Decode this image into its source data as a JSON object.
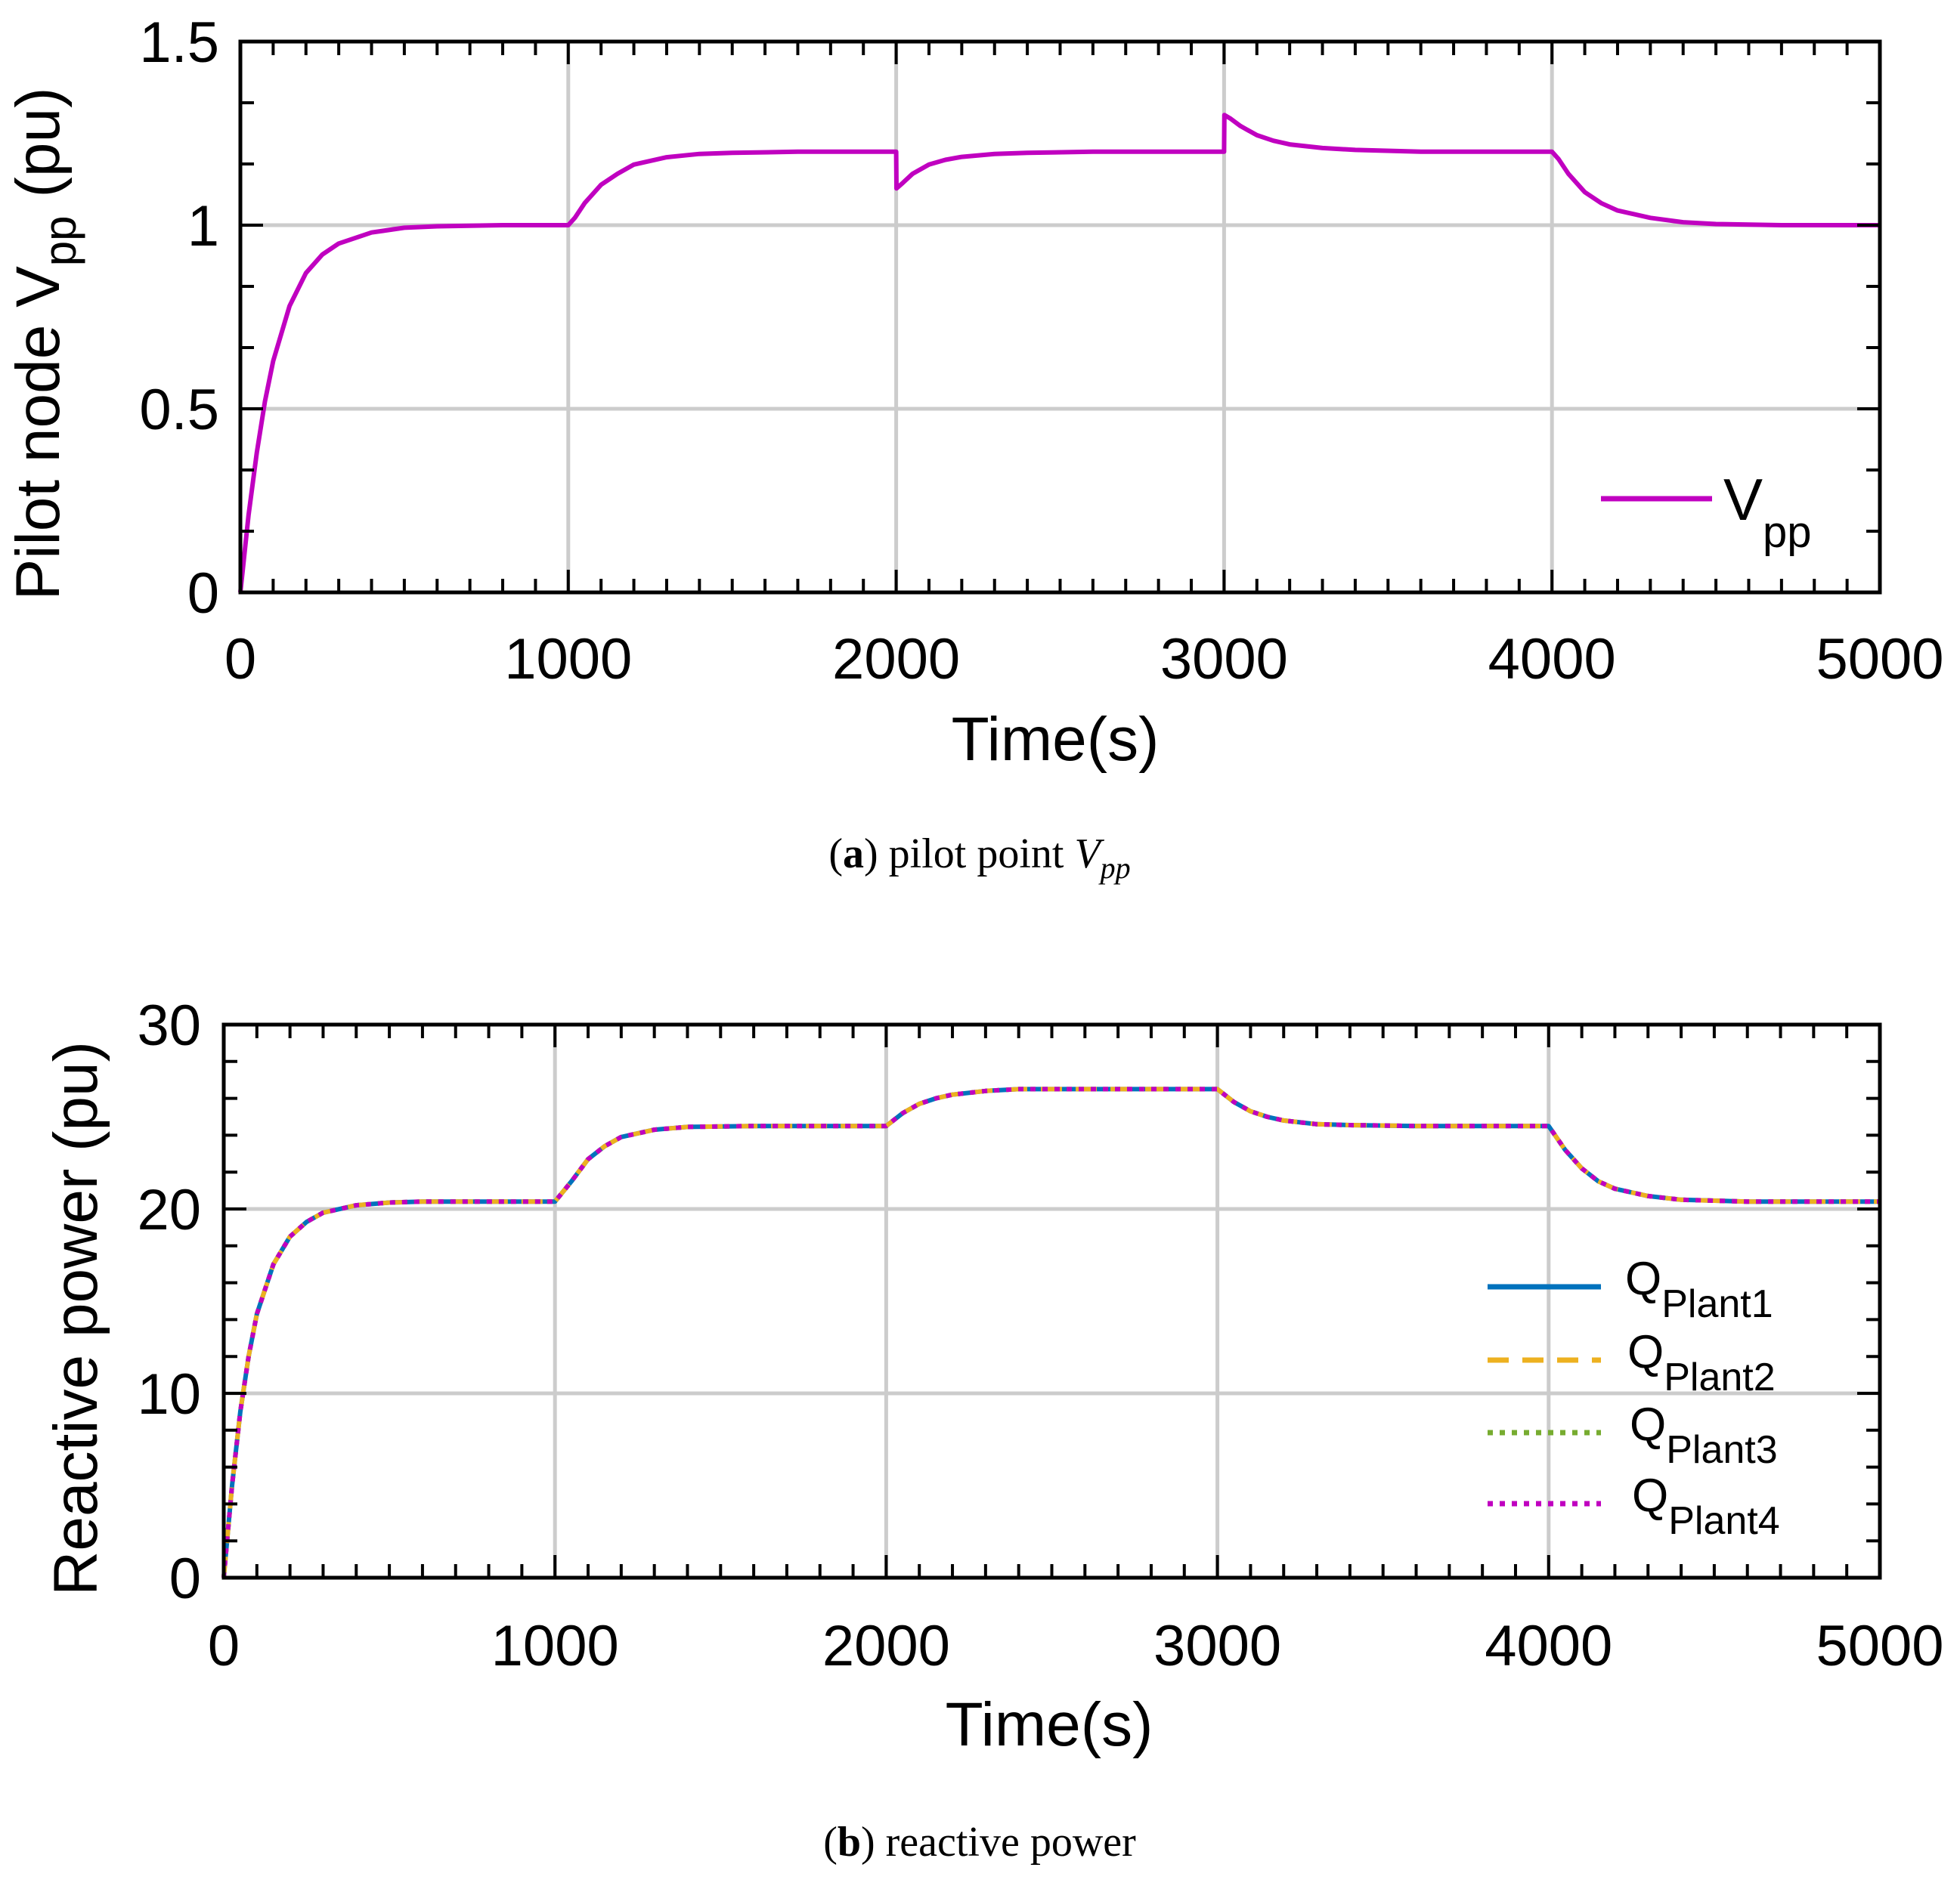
{
  "colors": {
    "vpp": "#c000c0",
    "plant1": "#0072bd",
    "plant2": "#edb120",
    "plant3": "#77ac30",
    "plant4": "#c000c0",
    "grid": "#cccccc",
    "axis": "#000000"
  },
  "chart_data": [
    {
      "type": "line",
      "id": "a",
      "xlabel": "Time(s)",
      "ylabel": "Pilot node V",
      "ylabel_sub": "pp",
      "ylabel_unit": "(pu)",
      "xlim": [
        0,
        5000
      ],
      "ylim": [
        0,
        1.5
      ],
      "xticks": [
        0,
        1000,
        2000,
        3000,
        4000,
        5000
      ],
      "xtick_labels": [
        "0",
        "1000",
        "2000",
        "3000",
        "4000",
        "5000"
      ],
      "yticks": [
        0,
        0.5,
        1,
        1.5
      ],
      "ytick_labels": [
        "0",
        "0.5",
        "1",
        "1.5"
      ],
      "grid": true,
      "legend_position": "bottom-right",
      "series": [
        {
          "name": "V",
          "name_sub": "pp",
          "style": "solid",
          "x": [
            0,
            25,
            50,
            75,
            100,
            150,
            200,
            250,
            300,
            400,
            500,
            600,
            800,
            1000,
            1020,
            1050,
            1100,
            1150,
            1200,
            1300,
            1400,
            1500,
            1700,
            2000,
            2001,
            2020,
            2050,
            2100,
            2150,
            2200,
            2300,
            2400,
            2600,
            3000,
            3001,
            3020,
            3050,
            3100,
            3150,
            3200,
            3300,
            3400,
            3600,
            4000,
            4020,
            4050,
            4100,
            4150,
            4200,
            4300,
            4400,
            4500,
            4700,
            5000
          ],
          "y": [
            0,
            0.21,
            0.38,
            0.52,
            0.63,
            0.78,
            0.87,
            0.92,
            0.95,
            0.98,
            0.993,
            0.997,
            1.0,
            1.0,
            1.02,
            1.06,
            1.11,
            1.14,
            1.165,
            1.185,
            1.194,
            1.197,
            1.2,
            1.2,
            1.1,
            1.115,
            1.14,
            1.165,
            1.178,
            1.186,
            1.194,
            1.197,
            1.2,
            1.2,
            1.3,
            1.29,
            1.27,
            1.245,
            1.23,
            1.22,
            1.21,
            1.205,
            1.2,
            1.2,
            1.18,
            1.14,
            1.09,
            1.06,
            1.04,
            1.02,
            1.008,
            1.003,
            1.0,
            1.0
          ]
        }
      ],
      "caption": {
        "label": "a",
        "text": "pilot point",
        "symbol": "V",
        "symbol_sub": "pp"
      }
    },
    {
      "type": "line",
      "id": "b",
      "xlabel": "Time(s)",
      "ylabel": "Reactive power (pu)",
      "xlim": [
        0,
        5000
      ],
      "ylim": [
        0,
        30
      ],
      "xticks": [
        0,
        1000,
        2000,
        3000,
        4000,
        5000
      ],
      "xtick_labels": [
        "0",
        "1000",
        "2000",
        "3000",
        "4000",
        "5000"
      ],
      "yticks": [
        0,
        10,
        20,
        30
      ],
      "ytick_labels": [
        "0",
        "10",
        "20",
        "30"
      ],
      "grid": true,
      "legend_position": "right",
      "x": [
        0,
        25,
        50,
        75,
        100,
        150,
        200,
        250,
        300,
        400,
        500,
        600,
        800,
        1000,
        1050,
        1100,
        1150,
        1200,
        1300,
        1400,
        1600,
        2000,
        2050,
        2100,
        2150,
        2200,
        2300,
        2400,
        2600,
        3000,
        3050,
        3100,
        3150,
        3200,
        3300,
        3400,
        3600,
        4000,
        4050,
        4100,
        4150,
        4200,
        4300,
        4400,
        4600,
        5000
      ],
      "series": [
        {
          "name": "Q",
          "name_sub": "Plant1",
          "style": "solid",
          "values": [
            0,
            5.0,
            9.0,
            12.0,
            14.3,
            17.0,
            18.5,
            19.3,
            19.8,
            20.2,
            20.35,
            20.4,
            20.4,
            20.4,
            21.5,
            22.7,
            23.4,
            23.9,
            24.3,
            24.45,
            24.5,
            24.5,
            25.2,
            25.7,
            26.0,
            26.2,
            26.4,
            26.5,
            26.5,
            26.5,
            25.8,
            25.3,
            25.0,
            24.8,
            24.6,
            24.55,
            24.5,
            24.5,
            23.2,
            22.2,
            21.5,
            21.1,
            20.7,
            20.5,
            20.4,
            20.4
          ]
        },
        {
          "name": "Q",
          "name_sub": "Plant2",
          "style": "dashed",
          "values": [
            0,
            5.0,
            9.0,
            12.0,
            14.3,
            17.0,
            18.5,
            19.3,
            19.8,
            20.2,
            20.35,
            20.4,
            20.4,
            20.4,
            21.5,
            22.7,
            23.4,
            23.9,
            24.3,
            24.45,
            24.5,
            24.5,
            25.2,
            25.7,
            26.0,
            26.2,
            26.4,
            26.5,
            26.5,
            26.5,
            25.8,
            25.3,
            25.0,
            24.8,
            24.6,
            24.55,
            24.5,
            24.5,
            23.2,
            22.2,
            21.5,
            21.1,
            20.7,
            20.5,
            20.4,
            20.4
          ]
        },
        {
          "name": "Q",
          "name_sub": "Plant3",
          "style": "dotted",
          "values": [
            0,
            5.0,
            9.0,
            12.0,
            14.3,
            17.0,
            18.5,
            19.3,
            19.8,
            20.2,
            20.35,
            20.4,
            20.4,
            20.4,
            21.5,
            22.7,
            23.4,
            23.9,
            24.3,
            24.45,
            24.5,
            24.5,
            25.2,
            25.7,
            26.0,
            26.2,
            26.4,
            26.5,
            26.5,
            26.5,
            25.8,
            25.3,
            25.0,
            24.8,
            24.6,
            24.55,
            24.5,
            24.5,
            23.2,
            22.2,
            21.5,
            21.1,
            20.7,
            20.5,
            20.4,
            20.4
          ]
        },
        {
          "name": "Q",
          "name_sub": "Plant4",
          "style": "dotted",
          "values": [
            0,
            5.0,
            9.0,
            12.0,
            14.3,
            17.0,
            18.5,
            19.3,
            19.8,
            20.2,
            20.35,
            20.4,
            20.4,
            20.4,
            21.5,
            22.7,
            23.4,
            23.9,
            24.3,
            24.45,
            24.5,
            24.5,
            25.2,
            25.7,
            26.0,
            26.2,
            26.4,
            26.5,
            26.5,
            26.5,
            25.8,
            25.3,
            25.0,
            24.8,
            24.6,
            24.55,
            24.5,
            24.5,
            23.2,
            22.2,
            21.5,
            21.1,
            20.7,
            20.5,
            20.4,
            20.4
          ]
        }
      ],
      "caption": {
        "label": "b",
        "text": "reactive power"
      }
    }
  ]
}
